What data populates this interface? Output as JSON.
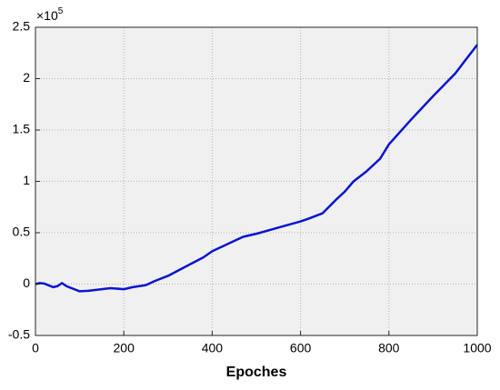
{
  "chart_data": {
    "type": "line",
    "x_label": "Epoches",
    "y_multiplier": {
      "base": "×10",
      "exponent": "5"
    },
    "x": [
      0,
      10,
      20,
      40,
      50,
      60,
      70,
      100,
      120,
      150,
      170,
      200,
      220,
      250,
      270,
      300,
      340,
      380,
      400,
      450,
      470,
      500,
      550,
      600,
      620,
      650,
      680,
      700,
      720,
      750,
      780,
      800,
      850,
      900,
      950,
      1000
    ],
    "series": [
      {
        "name": "Epoches",
        "color": "#0a14d2",
        "values": [
          0,
          0.01,
          0.005,
          -0.03,
          -0.02,
          0.01,
          -0.02,
          -0.07,
          -0.065,
          -0.05,
          -0.04,
          -0.05,
          -0.03,
          -0.01,
          0.03,
          0.08,
          0.17,
          0.26,
          0.32,
          0.42,
          0.46,
          0.49,
          0.55,
          0.61,
          0.64,
          0.69,
          0.82,
          0.9,
          1.0,
          1.1,
          1.22,
          1.36,
          1.6,
          1.83,
          2.05,
          2.33
        ]
      }
    ],
    "xlim": [
      0,
      1000
    ],
    "xticks": [
      0,
      200,
      400,
      600,
      800,
      1000
    ],
    "ylim": [
      -0.5,
      2.5
    ],
    "yticks": [
      -0.5,
      0,
      0.5,
      1,
      1.5,
      2,
      2.5
    ],
    "grid": true
  }
}
